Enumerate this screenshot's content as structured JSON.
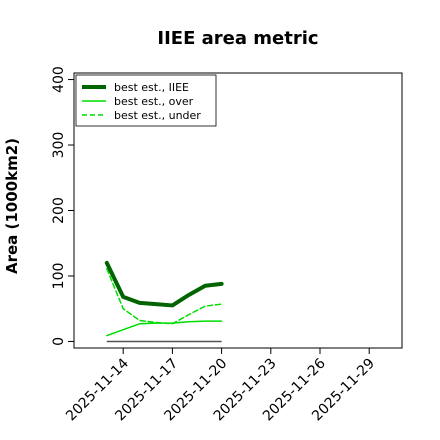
{
  "chart_data": {
    "type": "line",
    "title": "IIEE area metric",
    "xlabel": "",
    "ylabel": "Area (1000km2)",
    "ylim": [
      -10,
      410
    ],
    "yticks": [
      0,
      100,
      200,
      300,
      400
    ],
    "xlim": [
      "2025-11-11",
      "2025-12-01"
    ],
    "xticks": [
      "2025-11-14",
      "2025-11-17",
      "2025-11-20",
      "2025-11-23",
      "2025-11-26",
      "2025-11-29"
    ],
    "grid": false,
    "legend_position": "top-left",
    "x": [
      "2025-11-13",
      "2025-11-14",
      "2025-11-15",
      "2025-11-16",
      "2025-11-17",
      "2025-11-18",
      "2025-11-19",
      "2025-11-20"
    ],
    "series": [
      {
        "name": "best est., IIEE",
        "style": "solid-thick",
        "color": "#006400",
        "values": [
          120,
          68,
          59,
          57,
          55,
          71,
          85,
          88
        ]
      },
      {
        "name": "best est., over",
        "style": "solid",
        "color": "#00dd00",
        "values": [
          9,
          18,
          27,
          28,
          28,
          30,
          31,
          31
        ]
      },
      {
        "name": "best est., under",
        "style": "dashed",
        "color": "#00dd00",
        "values": [
          111,
          50,
          32,
          29,
          27,
          41,
          54,
          57
        ]
      }
    ],
    "baseline": {
      "color": "#555555",
      "values": [
        0,
        0,
        0,
        0,
        0,
        0,
        0,
        0
      ]
    }
  }
}
